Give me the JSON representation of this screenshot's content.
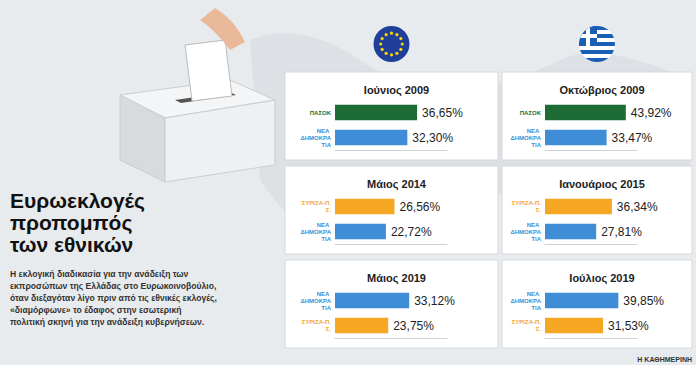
{
  "header": {
    "title_lines": [
      "Ευρωεκλογές",
      "προπομπός",
      "των εθνικών"
    ],
    "text_lines": [
      "Η εκλογική διαδικασία για την ανάδειξη των",
      "εκπροσώπων της Ελλάδας στο Ευρωκοινοβούλιο,",
      "όταν διεξαγόταν λίγο πριν από τις εθνικές εκλογές,",
      "«διαμόρφωνε» το έδαφος στην εσωτερική",
      "πολιτική σκηνή για την ανάδειξη κυβερνήσεων."
    ],
    "source": "Η ΚΑΘΗΜΕΡΙΝΗ"
  },
  "chart_data": [
    {
      "type": "bar",
      "orientation": "horizontal",
      "title": "Ιούνιος 2009",
      "categories": [
        "ΠΑΣΟΚ",
        "ΝΕΑ ΔΗΜΟΚΡΑΤΙΑ"
      ],
      "values": [
        36.65,
        32.3
      ],
      "value_labels": [
        "36,65%",
        "32,30%"
      ],
      "colors": [
        "#1d6b35",
        "#3e8dd6"
      ],
      "xlim": [
        0,
        50
      ],
      "xticks": [],
      "tick_labels": "y",
      "data_labels": true,
      "grid": false
    },
    {
      "type": "bar",
      "orientation": "horizontal",
      "title": "Οκτώβριος 2009",
      "categories": [
        "ΠΑΣΟΚ",
        "ΝΕΑ ΔΗΜΟΚΡΑΤΙΑ"
      ],
      "values": [
        43.92,
        33.47
      ],
      "value_labels": [
        "43,92%",
        "33,47%"
      ],
      "colors": [
        "#1d6b35",
        "#3e8dd6"
      ],
      "xlim": [
        0,
        50
      ],
      "xticks": [],
      "tick_labels": "y",
      "data_labels": true,
      "grid": false
    },
    {
      "type": "bar",
      "orientation": "horizontal",
      "title": "Μάιος 2014",
      "categories": [
        "ΣΥΡΙΖΑ-Π.Σ.",
        "ΝΕΑ ΔΗΜΟΚΡΑΤΙΑ"
      ],
      "values": [
        26.56,
        22.72
      ],
      "value_labels": [
        "26,56%",
        "22,72%"
      ],
      "colors": [
        "#f5a623",
        "#3e8dd6"
      ],
      "xlim": [
        0,
        50
      ],
      "xticks": [],
      "tick_labels": "y",
      "data_labels": true,
      "grid": false
    },
    {
      "type": "bar",
      "orientation": "horizontal",
      "title": "Ιανουάριος 2015",
      "categories": [
        "ΣΥΡΙΖΑ-Π.Σ.",
        "ΝΕΑ ΔΗΜΟΚΡΑΤΙΑ"
      ],
      "values": [
        36.34,
        27.81
      ],
      "value_labels": [
        "36,34%",
        "27,81%"
      ],
      "colors": [
        "#f5a623",
        "#3e8dd6"
      ],
      "xlim": [
        0,
        50
      ],
      "xticks": [],
      "tick_labels": "y",
      "data_labels": true,
      "grid": false
    },
    {
      "type": "bar",
      "orientation": "horizontal",
      "title": "Μάιος 2019",
      "categories": [
        "ΝΕΑ ΔΗΜΟΚΡΑΤΙΑ",
        "ΣΥΡΙΖΑ-Π.Σ."
      ],
      "values": [
        33.12,
        23.75
      ],
      "value_labels": [
        "33,12%",
        "23,75%"
      ],
      "colors": [
        "#3e8dd6",
        "#f5a623"
      ],
      "xlim": [
        0,
        50
      ],
      "xticks": [],
      "tick_labels": "y",
      "data_labels": true,
      "grid": false
    },
    {
      "type": "bar",
      "orientation": "horizontal",
      "title": "Ιούλιος 2019",
      "categories": [
        "ΝΕΑ ΔΗΜΟΚΡΑΤΙΑ",
        "ΣΥΡΙΖΑ-Π.Σ."
      ],
      "values": [
        39.85,
        31.53
      ],
      "value_labels": [
        "39,85%",
        "31,53%"
      ],
      "colors": [
        "#3e8dd6",
        "#f5a623"
      ],
      "xlim": [
        0,
        50
      ],
      "xticks": [],
      "tick_labels": "y",
      "data_labels": true,
      "grid": false
    }
  ]
}
